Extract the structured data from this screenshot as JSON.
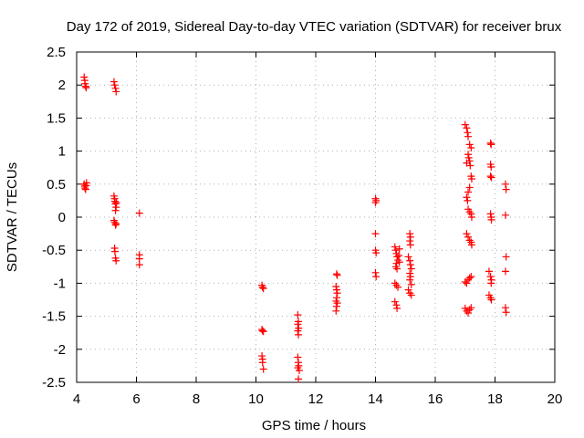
{
  "chart_data": {
    "type": "scatter",
    "title": "Day 172 of 2019, Sidereal Day-to-day VTEC variation (SDTVAR) for receiver brux",
    "xlabel": "GPS time / hours",
    "ylabel": "SDTVAR / TECUs",
    "xlim": [
      4,
      20
    ],
    "ylim": [
      -2.5,
      2.5
    ],
    "xticks": [
      4,
      6,
      8,
      10,
      12,
      14,
      16,
      18,
      20
    ],
    "yticks": [
      2.5,
      2,
      1.5,
      1,
      0.5,
      0,
      -0.5,
      -1,
      -1.5,
      -2,
      -2.5
    ],
    "grid": true,
    "marker": "+",
    "color": "#ff0000",
    "series": [
      {
        "name": "SDTVAR",
        "points": [
          [
            4.25,
            2.12
          ],
          [
            4.27,
            2.07
          ],
          [
            4.28,
            2.02
          ],
          [
            4.3,
            1.98
          ],
          [
            4.32,
            1.96
          ],
          [
            4.25,
            0.5
          ],
          [
            4.27,
            0.47
          ],
          [
            4.28,
            0.44
          ],
          [
            4.3,
            0.42
          ],
          [
            4.32,
            0.48
          ],
          [
            4.33,
            0.52
          ],
          [
            5.25,
            2.05
          ],
          [
            5.27,
            2.0
          ],
          [
            5.3,
            1.95
          ],
          [
            5.32,
            1.9
          ],
          [
            5.25,
            0.32
          ],
          [
            5.27,
            0.28
          ],
          [
            5.28,
            0.24
          ],
          [
            5.3,
            0.2
          ],
          [
            5.32,
            0.15
          ],
          [
            5.3,
            0.1
          ],
          [
            5.33,
            0.22
          ],
          [
            5.25,
            -0.05
          ],
          [
            5.27,
            -0.08
          ],
          [
            5.3,
            -0.12
          ],
          [
            5.32,
            -0.1
          ],
          [
            5.27,
            -0.47
          ],
          [
            5.28,
            -0.52
          ],
          [
            5.3,
            -0.62
          ],
          [
            5.32,
            -0.66
          ],
          [
            6.1,
            0.06
          ],
          [
            6.1,
            -0.57
          ],
          [
            6.1,
            -0.63
          ],
          [
            6.1,
            -0.72
          ],
          [
            10.2,
            -1.03
          ],
          [
            10.22,
            -1.06
          ],
          [
            10.25,
            -1.08
          ],
          [
            10.2,
            -1.7
          ],
          [
            10.22,
            -1.72
          ],
          [
            10.25,
            -1.73
          ],
          [
            10.2,
            -2.1
          ],
          [
            10.22,
            -2.15
          ],
          [
            10.22,
            -2.2
          ],
          [
            10.25,
            -2.3
          ],
          [
            11.4,
            -1.48
          ],
          [
            11.42,
            -1.58
          ],
          [
            11.4,
            -1.62
          ],
          [
            11.43,
            -1.68
          ],
          [
            11.4,
            -1.72
          ],
          [
            11.42,
            -1.78
          ],
          [
            11.4,
            -2.12
          ],
          [
            11.42,
            -2.2
          ],
          [
            11.43,
            -2.25
          ],
          [
            11.4,
            -2.28
          ],
          [
            11.45,
            -2.32
          ],
          [
            11.42,
            -2.45
          ],
          [
            12.7,
            -0.86
          ],
          [
            12.72,
            -0.88
          ],
          [
            12.68,
            -1.05
          ],
          [
            12.7,
            -1.1
          ],
          [
            12.72,
            -1.15
          ],
          [
            12.7,
            -1.22
          ],
          [
            12.68,
            -1.27
          ],
          [
            12.72,
            -1.3
          ],
          [
            12.7,
            -1.35
          ],
          [
            12.68,
            -1.42
          ],
          [
            14.0,
            0.28
          ],
          [
            14.02,
            0.25
          ],
          [
            14.0,
            0.22
          ],
          [
            14.0,
            -0.25
          ],
          [
            14.0,
            -0.5
          ],
          [
            14.02,
            -0.54
          ],
          [
            14.0,
            -0.84
          ],
          [
            14.02,
            -0.9
          ],
          [
            14.65,
            -0.45
          ],
          [
            14.68,
            -0.5
          ],
          [
            14.7,
            -0.55
          ],
          [
            14.72,
            -0.6
          ],
          [
            14.75,
            -0.65
          ],
          [
            14.7,
            -0.7
          ],
          [
            14.68,
            -0.75
          ],
          [
            14.72,
            -0.78
          ],
          [
            14.8,
            -0.48
          ],
          [
            14.78,
            -0.58
          ],
          [
            14.8,
            -0.68
          ],
          [
            14.65,
            -1.0
          ],
          [
            14.7,
            -1.03
          ],
          [
            14.75,
            -1.06
          ],
          [
            14.65,
            -1.28
          ],
          [
            14.7,
            -1.33
          ],
          [
            14.72,
            -1.38
          ],
          [
            15.15,
            -0.25
          ],
          [
            15.17,
            -0.3
          ],
          [
            15.15,
            -0.36
          ],
          [
            15.17,
            -0.42
          ],
          [
            15.1,
            -0.6
          ],
          [
            15.15,
            -0.66
          ],
          [
            15.17,
            -0.72
          ],
          [
            15.2,
            -0.78
          ],
          [
            15.15,
            -0.85
          ],
          [
            15.17,
            -0.9
          ],
          [
            15.15,
            -0.95
          ],
          [
            15.2,
            -1.02
          ],
          [
            15.1,
            -1.1
          ],
          [
            15.15,
            -1.15
          ],
          [
            15.2,
            -1.18
          ],
          [
            17.0,
            1.4
          ],
          [
            17.05,
            1.35
          ],
          [
            17.08,
            1.28
          ],
          [
            17.1,
            1.22
          ],
          [
            17.15,
            1.1
          ],
          [
            17.2,
            1.05
          ],
          [
            17.1,
            0.95
          ],
          [
            17.12,
            0.9
          ],
          [
            17.15,
            0.85
          ],
          [
            17.17,
            0.78
          ],
          [
            17.05,
            0.82
          ],
          [
            17.2,
            0.62
          ],
          [
            17.22,
            0.58
          ],
          [
            17.15,
            0.45
          ],
          [
            17.1,
            0.38
          ],
          [
            17.05,
            0.3
          ],
          [
            17.08,
            0.25
          ],
          [
            17.1,
            0.12
          ],
          [
            17.15,
            0.08
          ],
          [
            17.2,
            0.05
          ],
          [
            17.22,
            0.0
          ],
          [
            17.05,
            -0.25
          ],
          [
            17.1,
            -0.3
          ],
          [
            17.15,
            -0.35
          ],
          [
            17.2,
            -0.38
          ],
          [
            17.22,
            -0.42
          ],
          [
            17.0,
            -0.98
          ],
          [
            17.05,
            -1.0
          ],
          [
            17.1,
            -0.95
          ],
          [
            17.15,
            -0.92
          ],
          [
            17.2,
            -0.9
          ],
          [
            17.0,
            -1.38
          ],
          [
            17.05,
            -1.42
          ],
          [
            17.1,
            -1.45
          ],
          [
            17.15,
            -1.4
          ],
          [
            17.2,
            -1.37
          ],
          [
            17.85,
            1.12
          ],
          [
            17.87,
            1.1
          ],
          [
            17.85,
            0.8
          ],
          [
            17.87,
            0.76
          ],
          [
            17.85,
            0.62
          ],
          [
            17.88,
            0.6
          ],
          [
            17.85,
            0.05
          ],
          [
            17.87,
            0.0
          ],
          [
            17.88,
            -0.04
          ],
          [
            17.8,
            -0.82
          ],
          [
            17.85,
            -0.9
          ],
          [
            17.88,
            -0.95
          ],
          [
            17.87,
            -1.0
          ],
          [
            17.8,
            -1.18
          ],
          [
            17.85,
            -1.22
          ],
          [
            17.88,
            -1.25
          ],
          [
            18.35,
            0.5
          ],
          [
            18.37,
            0.42
          ],
          [
            18.35,
            0.03
          ],
          [
            18.37,
            -0.6
          ],
          [
            18.35,
            -0.82
          ],
          [
            18.35,
            -1.37
          ],
          [
            18.37,
            -1.44
          ]
        ]
      }
    ]
  }
}
